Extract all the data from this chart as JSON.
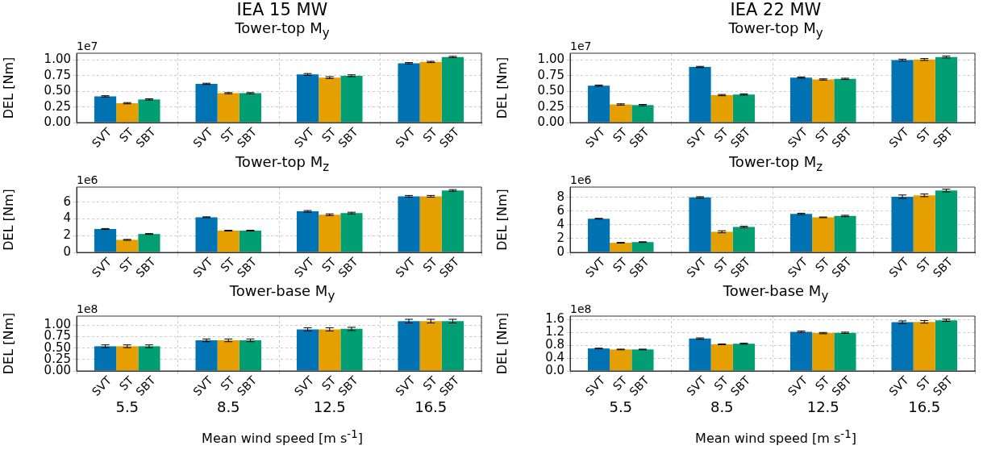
{
  "chart_data": [
    {
      "type": "bar",
      "title": "IEA 15 MW",
      "subtitle": "Tower-top M$_{y}$",
      "ylabel": "DEL [Nm]",
      "annotations": [
        "1e7"
      ],
      "categories": [
        "5.5",
        "8.5",
        "12.5",
        "16.5"
      ],
      "tick_labels": "y",
      "grid": true,
      "ylim": [
        0,
        1.11
      ],
      "yticks": [
        {
          "value": 0,
          "label": "0.00"
        },
        {
          "value": 0.25,
          "label": "0.25"
        },
        {
          "value": 0.5,
          "label": "0.50"
        },
        {
          "value": 0.75,
          "label": "0.75"
        },
        {
          "value": 1,
          "label": "1.00"
        }
      ],
      "series": [
        {
          "name": "SVT",
          "color": "#0173b2",
          "values": [
            0.42,
            0.62,
            0.77,
            0.95
          ],
          "errors": [
            0.01,
            0.01,
            0.015,
            0.01
          ]
        },
        {
          "name": "ST",
          "color": "#e69f00",
          "values": [
            0.31,
            0.47,
            0.72,
            0.97
          ],
          "errors": [
            0.01,
            0.01,
            0.015,
            0.01
          ]
        },
        {
          "name": "SBT",
          "color": "#029e73",
          "values": [
            0.37,
            0.47,
            0.75,
            1.05
          ],
          "errors": [
            0.01,
            0.01,
            0.015,
            0.01
          ]
        }
      ]
    },
    {
      "type": "bar",
      "title": "IEA 22 MW",
      "subtitle": "Tower-top M$_{y}$",
      "ylabel": "DEL [Nm]",
      "annotations": [
        "1e7"
      ],
      "categories": [
        "5.5",
        "8.5",
        "12.5",
        "16.5"
      ],
      "tick_labels": "y",
      "grid": true,
      "ylim": [
        0,
        1.11
      ],
      "yticks": [
        {
          "value": 0,
          "label": "0.00"
        },
        {
          "value": 0.25,
          "label": "0.25"
        },
        {
          "value": 0.5,
          "label": "0.50"
        },
        {
          "value": 0.75,
          "label": "0.75"
        },
        {
          "value": 1,
          "label": "1.00"
        }
      ],
      "series": [
        {
          "name": "SVT",
          "color": "#0173b2",
          "values": [
            0.59,
            0.89,
            0.72,
            1.0
          ],
          "errors": [
            0.01,
            0.01,
            0.01,
            0.015
          ]
        },
        {
          "name": "ST",
          "color": "#e69f00",
          "values": [
            0.29,
            0.44,
            0.69,
            1.01
          ],
          "errors": [
            0.01,
            0.01,
            0.01,
            0.015
          ]
        },
        {
          "name": "SBT",
          "color": "#029e73",
          "values": [
            0.28,
            0.45,
            0.7,
            1.05
          ],
          "errors": [
            0.01,
            0.01,
            0.01,
            0.015
          ]
        }
      ]
    },
    {
      "type": "bar",
      "title": "Tower-top M$_{z}$",
      "ylabel": "DEL [Nm]",
      "annotations": [
        "1e6"
      ],
      "categories": [
        "5.5",
        "8.5",
        "12.5",
        "16.5"
      ],
      "tick_labels": "y",
      "grid": true,
      "ylim": [
        0,
        7.8
      ],
      "yticks": [
        0,
        2,
        4,
        6
      ],
      "series": [
        {
          "name": "SVT",
          "color": "#0173b2",
          "values": [
            2.8,
            4.2,
            4.9,
            6.7
          ],
          "errors": [
            0.05,
            0.05,
            0.1,
            0.1
          ]
        },
        {
          "name": "ST",
          "color": "#e69f00",
          "values": [
            1.5,
            2.6,
            4.5,
            6.7
          ],
          "errors": [
            0.05,
            0.05,
            0.1,
            0.1
          ]
        },
        {
          "name": "SBT",
          "color": "#029e73",
          "values": [
            2.2,
            2.6,
            4.7,
            7.4
          ],
          "errors": [
            0.05,
            0.05,
            0.1,
            0.1
          ]
        }
      ]
    },
    {
      "type": "bar",
      "title": "Tower-top M$_{z}$",
      "ylabel": "DEL [Nm]",
      "annotations": [
        "1e6"
      ],
      "categories": [
        "5.5",
        "8.5",
        "12.5",
        "16.5"
      ],
      "tick_labels": "y",
      "grid": true,
      "ylim": [
        0,
        9.5
      ],
      "yticks": [
        0,
        2,
        4,
        6,
        8
      ],
      "series": [
        {
          "name": "SVT",
          "color": "#0173b2",
          "values": [
            4.9,
            8.0,
            5.6,
            8.1
          ],
          "errors": [
            0.05,
            0.1,
            0.1,
            0.25
          ]
        },
        {
          "name": "ST",
          "color": "#e69f00",
          "values": [
            1.4,
            3.0,
            5.1,
            8.3
          ],
          "errors": [
            0.05,
            0.15,
            0.05,
            0.2
          ]
        },
        {
          "name": "SBT",
          "color": "#029e73",
          "values": [
            1.5,
            3.7,
            5.3,
            9.0
          ],
          "errors": [
            0.05,
            0.1,
            0.1,
            0.2
          ]
        }
      ]
    },
    {
      "type": "bar",
      "title": "Tower-base M$_{y}$",
      "ylabel": "DEL [Nm]",
      "xlabel": "Mean wind speed [m s$^{-1}$]",
      "annotations": [
        "1e8"
      ],
      "categories": [
        "5.5",
        "8.5",
        "12.5",
        "16.5"
      ],
      "grid": true,
      "ylim": [
        0,
        1.2
      ],
      "yticks": [
        {
          "value": 0,
          "label": "0.00"
        },
        {
          "value": 0.25,
          "label": "0.25"
        },
        {
          "value": 0.5,
          "label": "0.50"
        },
        {
          "value": 0.75,
          "label": "0.75"
        },
        {
          "value": 1,
          "label": "1.00"
        }
      ],
      "series": [
        {
          "name": "SVT",
          "color": "#0173b2",
          "values": [
            0.54,
            0.67,
            0.91,
            1.09
          ],
          "errors": [
            0.03,
            0.03,
            0.035,
            0.04
          ]
        },
        {
          "name": "ST",
          "color": "#e69f00",
          "values": [
            0.54,
            0.67,
            0.91,
            1.09
          ],
          "errors": [
            0.03,
            0.03,
            0.035,
            0.04
          ]
        },
        {
          "name": "SBT",
          "color": "#029e73",
          "values": [
            0.54,
            0.67,
            0.92,
            1.09
          ],
          "errors": [
            0.03,
            0.03,
            0.035,
            0.04
          ]
        }
      ]
    },
    {
      "type": "bar",
      "title": "Tower-base M$_{y}$",
      "ylabel": "DEL [Nm]",
      "xlabel": "Mean wind speed [m s$^{-1}$]",
      "annotations": [
        "1e8"
      ],
      "categories": [
        "5.5",
        "8.5",
        "12.5",
        "16.5"
      ],
      "grid": true,
      "ylim": [
        0,
        1.71
      ],
      "yticks": [
        {
          "value": 0,
          "label": "0.0"
        },
        {
          "value": 0.4,
          "label": "0.4"
        },
        {
          "value": 0.8,
          "label": "0.8"
        },
        {
          "value": 1.2,
          "label": "1.2"
        },
        {
          "value": 1.6,
          "label": "1.6"
        }
      ],
      "series": [
        {
          "name": "SVT",
          "color": "#0173b2",
          "values": [
            0.7,
            1.01,
            1.22,
            1.52
          ],
          "errors": [
            0.01,
            0.02,
            0.025,
            0.04
          ]
        },
        {
          "name": "ST",
          "color": "#e69f00",
          "values": [
            0.67,
            0.83,
            1.18,
            1.53
          ],
          "errors": [
            0.01,
            0.01,
            0.02,
            0.04
          ]
        },
        {
          "name": "SBT",
          "color": "#029e73",
          "values": [
            0.67,
            0.85,
            1.19,
            1.58
          ],
          "errors": [
            0.01,
            0.015,
            0.02,
            0.035
          ]
        }
      ]
    }
  ]
}
